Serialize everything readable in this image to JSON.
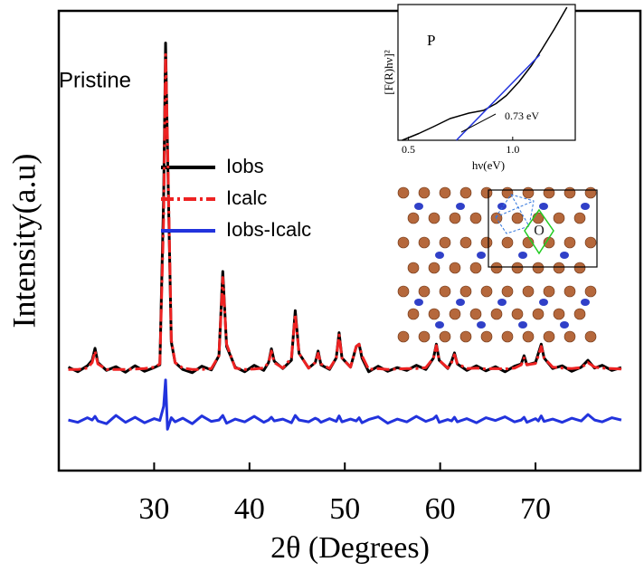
{
  "chart_data": [
    {
      "type": "line",
      "x_label": "2θ (Degrees)",
      "y_label": "Intensity(a.u)",
      "annotations": [
        "Pristine"
      ],
      "xlim": [
        20,
        81
      ],
      "ylim": [
        0,
        100
      ],
      "xticks": [
        30,
        40,
        50,
        60,
        70
      ],
      "legend": "upper left",
      "x": [
        21,
        22,
        23,
        23.5,
        23.8,
        24.1,
        25,
        26,
        27,
        28,
        29,
        30,
        30.6,
        31.0,
        31.2,
        31.4,
        31.8,
        32.2,
        33,
        34,
        35,
        36,
        36.8,
        37.2,
        37.6,
        38.5,
        39.5,
        40.5,
        41.5,
        42.0,
        42.3,
        42.6,
        43.5,
        44.4,
        44.8,
        45.2,
        46.2,
        46.9,
        47.2,
        47.5,
        48.4,
        49.1,
        49.4,
        49.7,
        50.6,
        51.2,
        51.5,
        51.8,
        52.5,
        53.5,
        54.5,
        55.5,
        56.5,
        57.5,
        58.5,
        59.3,
        59.6,
        59.9,
        60.8,
        61.2,
        61.5,
        61.8,
        62.8,
        63.8,
        64.8,
        65.8,
        66.8,
        67.8,
        68.5,
        68.8,
        69.1,
        70.0,
        70.3,
        70.6,
        70.9,
        71.8,
        72.8,
        73.8,
        74.8,
        75.5,
        76.2,
        77.0,
        78.0,
        79.0
      ],
      "series": [
        {
          "name": "Iobs",
          "color": "#000000",
          "linestyle": "solid",
          "values": [
            22.5,
            21.5,
            22.8,
            24,
            26.6,
            23.5,
            21.8,
            22.6,
            21.4,
            22.8,
            21.6,
            22.4,
            23,
            60,
            93,
            70,
            28,
            23.5,
            22,
            21.3,
            22.7,
            21.9,
            25,
            43.3,
            27,
            22.5,
            21.5,
            22.9,
            21.8,
            23.5,
            26.5,
            23.8,
            22.2,
            24,
            34.8,
            25.5,
            22.3,
            23.5,
            26,
            23,
            22,
            24.5,
            30,
            24.5,
            22.5,
            27,
            27.5,
            24.5,
            21.5,
            22.7,
            21.6,
            22.4,
            21.8,
            22.9,
            22,
            24.5,
            27.5,
            24,
            22.2,
            23.8,
            25.6,
            23.2,
            21.8,
            22.8,
            21.7,
            22.6,
            21.5,
            22.7,
            23.2,
            25,
            23,
            23.5,
            25.5,
            27.5,
            24.5,
            22.2,
            22.8,
            21.6,
            22.5,
            24,
            22.3,
            22.9,
            21.8,
            22.4
          ]
        },
        {
          "name": "Icalc",
          "color": "#ee2222",
          "linestyle": "dashdot",
          "values": [
            22,
            22,
            22.3,
            23.5,
            26,
            23.2,
            22,
            22,
            22,
            22.1,
            22.2,
            22.5,
            23.2,
            55,
            90.5,
            72,
            28.5,
            23.5,
            22.3,
            22,
            22,
            22.2,
            25,
            42,
            27.5,
            22.3,
            22,
            22.1,
            22.3,
            23.5,
            26,
            23.5,
            22.3,
            24.5,
            34,
            25.5,
            22.3,
            23.5,
            25.5,
            23.2,
            22.2,
            24.5,
            29.5,
            24.5,
            22.5,
            27,
            27.5,
            25,
            22,
            22.2,
            22,
            22.1,
            22.2,
            22.2,
            22.4,
            24.5,
            27.2,
            24,
            22.3,
            23.5,
            25.2,
            23.3,
            22.2,
            22.3,
            22.1,
            22.2,
            22.1,
            22.3,
            23,
            24.5,
            23,
            23.3,
            25,
            27,
            24.5,
            22.5,
            22.3,
            22.2,
            22.4,
            23.5,
            22.5,
            22.3,
            22.2,
            22.1
          ]
        },
        {
          "name": "Iobs-Icalc",
          "color": "#2233dd",
          "linestyle": "solid",
          "values": [
            11,
            10.5,
            11.5,
            11,
            11.8,
            10.8,
            10.2,
            12,
            10.5,
            11.6,
            10.4,
            11.3,
            10.9,
            14,
            19.7,
            9,
            11.5,
            10.6,
            11.4,
            10.2,
            11.9,
            10.7,
            11,
            12,
            10.3,
            11.2,
            10.6,
            11.8,
            10.5,
            11,
            11.6,
            10.8,
            11.2,
            10.4,
            12,
            11,
            10.6,
            11.4,
            11.1,
            10.5,
            11.3,
            10.7,
            11.9,
            10.6,
            11.2,
            10.8,
            11.5,
            10.4,
            11.1,
            11.7,
            10.3,
            11.2,
            10.6,
            11.8,
            10.7,
            11.3,
            11.9,
            10.5,
            11.1,
            10.8,
            11.6,
            10.6,
            11.3,
            10.4,
            11.5,
            10.9,
            11.7,
            10.6,
            11,
            11.6,
            10.5,
            11.3,
            10.8,
            11.9,
            10.7,
            11.2,
            10.5,
            11.4,
            10.8,
            12.2,
            11,
            10.6,
            11.5,
            11
          ]
        }
      ]
    },
    {
      "type": "line",
      "x_label": "hν(eV)",
      "y_label": "[F(R)hν]²",
      "annotations": [
        "P",
        "0.73 eV"
      ],
      "xlim": [
        0.45,
        1.3
      ],
      "ylim": [
        0,
        1
      ],
      "xticks": [
        {
          "value": 0.5,
          "label": "0.5"
        },
        {
          "value": 1.0,
          "label": "1.0"
        }
      ],
      "series": [
        {
          "color": "#000000",
          "linestyle": "solid",
          "x": [
            0.47,
            0.55,
            0.62,
            0.7,
            0.79,
            0.86,
            0.92,
            0.97,
            1.03,
            1.09,
            1.14,
            1.2,
            1.26
          ],
          "values": [
            0,
            0.05,
            0.1,
            0.16,
            0.2,
            0.22,
            0.27,
            0.33,
            0.43,
            0.55,
            0.67,
            0.82,
            0.98
          ]
        },
        {
          "color": "#2233dd",
          "linestyle": "solid",
          "x": [
            0.73,
            1.13
          ],
          "values": [
            0,
            0.63
          ]
        }
      ]
    },
    {
      "type": "structure",
      "label": "O"
    }
  ]
}
